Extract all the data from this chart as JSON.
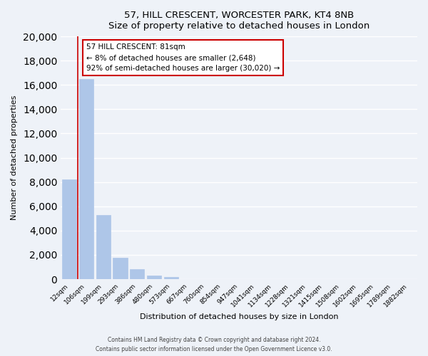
{
  "title": "57, HILL CRESCENT, WORCESTER PARK, KT4 8NB",
  "subtitle": "Size of property relative to detached houses in London",
  "xlabel": "Distribution of detached houses by size in London",
  "ylabel": "Number of detached properties",
  "bar_labels": [
    "12sqm",
    "106sqm",
    "199sqm",
    "293sqm",
    "386sqm",
    "480sqm",
    "573sqm",
    "667sqm",
    "760sqm",
    "854sqm",
    "947sqm",
    "1041sqm",
    "1134sqm",
    "1228sqm",
    "1321sqm",
    "1415sqm",
    "1508sqm",
    "1602sqm",
    "1695sqm",
    "1789sqm",
    "1882sqm"
  ],
  "bar_values": [
    8200,
    16500,
    5300,
    1750,
    800,
    300,
    200,
    0,
    0,
    0,
    0,
    0,
    0,
    0,
    0,
    0,
    0,
    0,
    0,
    0,
    0
  ],
  "bar_color": "#aec6e8",
  "bar_edge_color": "#aec6e8",
  "annotation_box_title": "57 HILL CRESCENT: 81sqm",
  "annotation_line1": "← 8% of detached houses are smaller (2,648)",
  "annotation_line2": "92% of semi-detached houses are larger (30,020) →",
  "annotation_box_color": "#ffffff",
  "annotation_box_edge": "#cc0000",
  "red_line_x": 0.5,
  "ylim": [
    0,
    20000
  ],
  "yticks": [
    0,
    2000,
    4000,
    6000,
    8000,
    10000,
    12000,
    14000,
    16000,
    18000,
    20000
  ],
  "footer_line1": "Contains HM Land Registry data © Crown copyright and database right 2024.",
  "footer_line2": "Contains public sector information licensed under the Open Government Licence v3.0.",
  "background_color": "#eef2f8",
  "grid_color": "#ffffff"
}
